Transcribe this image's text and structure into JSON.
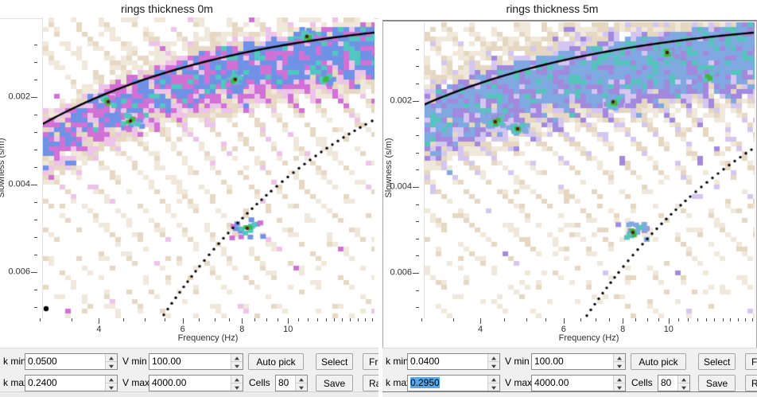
{
  "windows": [
    {
      "title": "rings thickness 0m",
      "plot": {
        "xlabel": "Frequency (Hz)",
        "ylabel": "Slowness (s/m)"
      },
      "panel": {
        "k_min_label": "k min",
        "k_min_value": "0.0500",
        "v_min_label": "V min",
        "v_min_value": "100.00",
        "k_max_label": "k max",
        "k_max_value": "0.2400",
        "k_max_selected": false,
        "v_max_label": "V max",
        "v_max_value": "4000.00",
        "cells_label": "Cells",
        "cells_value": "80",
        "auto_pick_label": "Auto pick",
        "select_label": "Select",
        "save_label": "Save",
        "cut_button_top": "Fr",
        "cut_button_bottom": "Ra"
      }
    },
    {
      "title": "rings thickness 5m",
      "plot": {
        "xlabel": "Frequency (Hz)",
        "ylabel": "Slowness (s/m)"
      },
      "panel": {
        "k_min_label": "k min",
        "k_min_value": "0.0400",
        "v_min_label": "V min",
        "v_min_value": "100.00",
        "k_max_label": "k max",
        "k_max_value": "0.2950",
        "k_max_selected": true,
        "v_max_label": "V max",
        "v_max_value": "4000.00",
        "cells_label": "Cells",
        "cells_value": "80",
        "auto_pick_label": "Auto pick",
        "select_label": "Select",
        "save_label": "Save",
        "cut_button_top": "Fre",
        "cut_button_bottom": "Ra"
      }
    }
  ],
  "chart_data": [
    {
      "type": "heatmap",
      "title": "rings thickness 0m",
      "xlabel": "Frequency (Hz)",
      "ylabel": "Slowness (s/m)",
      "x_scale": "log",
      "x_range_hz": [
        3.05,
        15.2
      ],
      "y_range_s_per_m": [
        0.00018,
        0.00705
      ],
      "x_ticks": [
        {
          "v": 4,
          "label": "4"
        },
        {
          "v": 6,
          "label": "6"
        },
        {
          "v": 8,
          "label": "8"
        },
        {
          "v": 10,
          "label": "10"
        }
      ],
      "x_minor_ticks": [
        3,
        3.5,
        4.5,
        5,
        5.5,
        6.5,
        7,
        7.5,
        8.5,
        9,
        9.5,
        10.5,
        11,
        11.5,
        12,
        12.5,
        13,
        13.5,
        14,
        14.5,
        15
      ],
      "y_ticks": [
        {
          "v": 0.002,
          "label": "0.002"
        },
        {
          "v": 0.004,
          "label": "0.004"
        },
        {
          "v": 0.006,
          "label": "0.006"
        }
      ],
      "y_minor_ticks": [
        0.0008,
        0.0012,
        0.0016,
        0.0024,
        0.0028,
        0.0032,
        0.0036,
        0.0044,
        0.0048,
        0.0052,
        0.0056,
        0.0064,
        0.0068
      ],
      "k_min": 0.05,
      "k_max": 0.24,
      "overlays": {
        "solid_curve": "slowness = k_min / (2*pi*f)",
        "dotted_curve": "slowness = k_max / (2*pi*f)"
      },
      "corner_marker": true,
      "hotspots_pct": [
        {
          "x": 19.7,
          "y": 28.0,
          "size": 9,
          "dark": true
        },
        {
          "x": 26.4,
          "y": 34.4,
          "size": 12,
          "dark": true
        },
        {
          "x": 58.0,
          "y": 20.6,
          "size": 8,
          "dark": true
        },
        {
          "x": 79.6,
          "y": 6.3,
          "size": 9,
          "dark": true
        },
        {
          "x": 85.1,
          "y": 20.4,
          "size": 7,
          "dark": false
        },
        {
          "x": 61.6,
          "y": 70.1,
          "size": 13,
          "dark": true
        }
      ],
      "palette": {
        "beige_light": "#f0e8da",
        "beige": "#e6d8c2",
        "accent_light": "#eec3ea",
        "accent": "#d171d6",
        "blue": "#6f92e6",
        "teal": "#52c6c0",
        "green": "#3cb843",
        "dark": "#531616"
      },
      "texture": {
        "band_amp": 1.0,
        "band_sigma": 30
      },
      "seed": 11
    },
    {
      "type": "heatmap",
      "title": "rings thickness 5m",
      "xlabel": "Frequency (Hz)",
      "ylabel": "Slowness (s/m)",
      "x_scale": "log",
      "x_range_hz": [
        3.05,
        15.2
      ],
      "y_range_s_per_m": [
        0.00018,
        0.00705
      ],
      "x_ticks": [
        {
          "v": 4,
          "label": "4"
        },
        {
          "v": 6,
          "label": "6"
        },
        {
          "v": 8,
          "label": "8"
        },
        {
          "v": 10,
          "label": "10"
        }
      ],
      "x_minor_ticks": [
        3,
        3.5,
        4.5,
        5,
        5.5,
        6.5,
        7,
        7.5,
        8.5,
        9,
        9.5,
        10.5,
        11,
        11.5,
        12,
        12.5,
        13,
        13.5,
        14,
        14.5,
        15
      ],
      "y_ticks": [
        {
          "v": 0.002,
          "label": "0.002"
        },
        {
          "v": 0.004,
          "label": "0.004"
        },
        {
          "v": 0.006,
          "label": "0.006"
        }
      ],
      "y_minor_ticks": [
        0.0008,
        0.0012,
        0.0016,
        0.0024,
        0.0028,
        0.0032,
        0.0036,
        0.0044,
        0.0048,
        0.0052,
        0.0056,
        0.0064,
        0.0068
      ],
      "k_min": 0.04,
      "k_max": 0.295,
      "overlays": {
        "solid_curve": "slowness = k_min / (2*pi*f)",
        "dotted_curve": "slowness = k_max / (2*pi*f)"
      },
      "corner_marker": false,
      "hotspots_pct": [
        {
          "x": 21.4,
          "y": 33.6,
          "size": 10,
          "dark": true
        },
        {
          "x": 28.2,
          "y": 36.0,
          "size": 8,
          "dark": true
        },
        {
          "x": 57.1,
          "y": 26.9,
          "size": 9,
          "dark": true
        },
        {
          "x": 73.5,
          "y": 10.2,
          "size": 9,
          "dark": true
        },
        {
          "x": 86.0,
          "y": 18.3,
          "size": 7,
          "dark": false
        },
        {
          "x": 63.1,
          "y": 71.0,
          "size": 13,
          "dark": true
        }
      ],
      "palette": {
        "beige_light": "#f0e8da",
        "beige": "#e5d7c1",
        "accent_light": "#d4c6f0",
        "accent": "#a289dd",
        "blue": "#7fa9e0",
        "teal": "#57c3bd",
        "green": "#47b33e",
        "dark": "#531616"
      },
      "texture": {
        "band_amp": 1.15,
        "band_sigma": 38
      },
      "seed": 29
    }
  ]
}
